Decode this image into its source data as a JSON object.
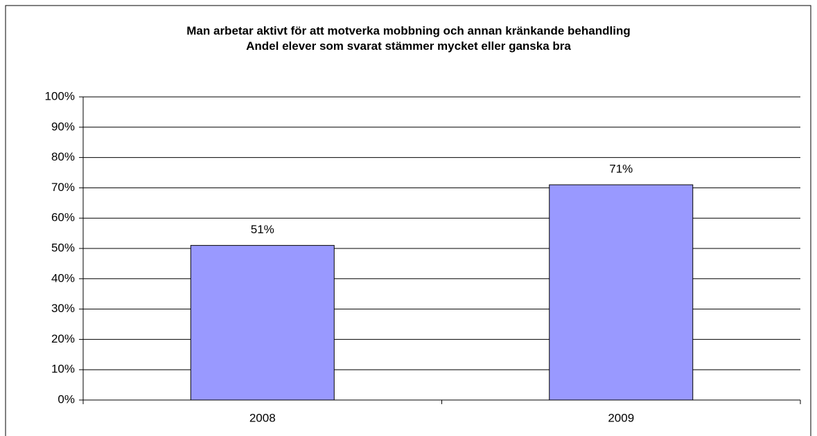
{
  "chart_data": {
    "type": "bar",
    "title": "Man arbetar aktivt för att motverka mobbning och annan kränkande behandling",
    "subtitle": "Andel elever som svarat stämmer mycket eller ganska bra",
    "categories": [
      "2008",
      "2009"
    ],
    "values": [
      51,
      71
    ],
    "value_labels": [
      "51%",
      "71%"
    ],
    "color": "#9999ff",
    "ylim": [
      0,
      100
    ],
    "yticks": [
      {
        "value": 0,
        "label": "0%"
      },
      {
        "value": 10,
        "label": "10%"
      },
      {
        "value": 20,
        "label": "20%"
      },
      {
        "value": 30,
        "label": "30%"
      },
      {
        "value": 40,
        "label": "40%"
      },
      {
        "value": 50,
        "label": "50%"
      },
      {
        "value": 60,
        "label": "60%"
      },
      {
        "value": 70,
        "label": "70%"
      },
      {
        "value": 80,
        "label": "80%"
      },
      {
        "value": 90,
        "label": "90%"
      },
      {
        "value": 100,
        "label": "100%"
      }
    ],
    "grid": true
  }
}
